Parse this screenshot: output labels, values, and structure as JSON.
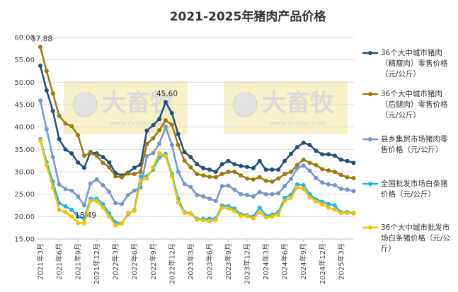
{
  "chart_data": {
    "type": "line",
    "title": "2021-2025年猪肉产品价格",
    "watermarks": [
      {
        "text": "大畜牧",
        "url": "www.dxumu.com"
      },
      {
        "text": "大畜牧",
        "url": "www.dxumu.com"
      }
    ],
    "categories": [
      "2021年3月",
      null,
      null,
      "2021年6月",
      null,
      null,
      "2021年9月",
      null,
      null,
      "2021年12月",
      null,
      null,
      "2022年3月",
      null,
      null,
      "2022年6月",
      null,
      null,
      "2022年9月",
      null,
      null,
      "2022年12月",
      null,
      null,
      "2023年3月",
      null,
      null,
      "2023年6月",
      null,
      null,
      "2023年9月",
      null,
      null,
      "2023年12月",
      null,
      null,
      "2024年3月",
      null,
      null,
      "2024年6月",
      null,
      null,
      "2024年9月",
      null,
      null,
      "2024年12月",
      null,
      null,
      "2025年3月",
      null,
      null
    ],
    "ylim": [
      15,
      60
    ],
    "yticks": [
      {
        "value": 15,
        "label": "15.00"
      },
      {
        "value": 20,
        "label": "20.00"
      },
      {
        "value": 25,
        "label": "25.00"
      },
      {
        "value": 30,
        "label": "30.00"
      },
      {
        "value": 35,
        "label": "35.00"
      },
      {
        "value": 40,
        "label": "40.00"
      },
      {
        "value": 45,
        "label": "45.00"
      },
      {
        "value": 50,
        "label": "50.00"
      },
      {
        "value": 55,
        "label": "55.00"
      },
      {
        "value": 60,
        "label": "60.00"
      }
    ],
    "grid": true,
    "legend": "right",
    "series": [
      {
        "name": "36个大中城市猪肉（精瘦肉）零售价格（元/公斤）",
        "color": "#1f4e79",
        "values": [
          53.7,
          48.2,
          43.6,
          37.3,
          35.0,
          34.1,
          32.1,
          30.9,
          34.4,
          34.1,
          33.3,
          32.1,
          29.7,
          29.2,
          29.8,
          30.9,
          31.6,
          39.2,
          40.4,
          41.8,
          45.6,
          43.1,
          38.4,
          34.4,
          33.3,
          31.7,
          30.8,
          30.5,
          30.0,
          31.7,
          32.4,
          31.7,
          31.3,
          31.1,
          30.8,
          32.4,
          30.5,
          30.5,
          30.5,
          32.4,
          34.0,
          35.5,
          36.5,
          36.0,
          34.7,
          33.9,
          33.9,
          33.6,
          32.7,
          32.4,
          32.0
        ],
        "value_labels": [
          null,
          null,
          null,
          null,
          null,
          null,
          null,
          null,
          null,
          null,
          null,
          null,
          null,
          null,
          null,
          null,
          null,
          null,
          null,
          null,
          "45.60",
          null,
          null,
          null,
          null,
          null,
          null,
          null,
          null,
          null,
          null,
          null,
          null,
          null,
          null,
          null,
          null,
          null,
          null,
          null,
          null,
          null,
          null,
          null,
          null,
          null,
          null,
          null,
          null,
          null,
          null
        ]
      },
      {
        "name": "36个大中城市猪肉（后腿肉）零售价格（元/公斤）",
        "color": "#9c7a0a",
        "values": [
          57.88,
          52.5,
          47.5,
          42.5,
          40.8,
          40.2,
          38.2,
          33.6,
          34.2,
          33.6,
          32.0,
          31.0,
          29.0,
          28.8,
          29.6,
          29.5,
          30.0,
          36.2,
          37.5,
          39.3,
          41.5,
          40.5,
          36.0,
          32.5,
          31.0,
          29.5,
          29.2,
          28.9,
          28.8,
          29.5,
          30.0,
          30.0,
          29.2,
          28.5,
          28.3,
          28.8,
          28.0,
          27.8,
          28.5,
          29.5,
          30.0,
          31.5,
          32.7,
          32.0,
          31.5,
          30.6,
          30.3,
          30.0,
          29.3,
          28.8,
          28.6
        ],
        "value_labels": [
          "57.88",
          null,
          null,
          null,
          null,
          null,
          null,
          null,
          null,
          null,
          null,
          null,
          null,
          null,
          null,
          null,
          null,
          null,
          null,
          null,
          null,
          null,
          null,
          null,
          null,
          null,
          null,
          null,
          null,
          null,
          null,
          null,
          null,
          null,
          null,
          null,
          null,
          null,
          null,
          null,
          null,
          null,
          null,
          null,
          null,
          null,
          null,
          null,
          null,
          null,
          null
        ]
      },
      {
        "name": "县乡集贸市场猪肉零售价格（元/公斤）",
        "color": "#7595cf",
        "values": [
          45.9,
          39.5,
          33.3,
          27.2,
          26.2,
          25.8,
          24.5,
          22.5,
          27.4,
          28.3,
          27.0,
          25.5,
          23.0,
          22.8,
          24.8,
          25.8,
          26.5,
          33.5,
          34.2,
          36.3,
          40.0,
          36.0,
          30.0,
          27.3,
          26.6,
          24.8,
          24.5,
          24.0,
          23.5,
          26.8,
          26.9,
          26.0,
          25.0,
          24.8,
          24.5,
          25.5,
          25.0,
          25.0,
          25.2,
          26.8,
          28.4,
          30.8,
          31.4,
          30.2,
          28.6,
          27.6,
          27.2,
          27.0,
          26.2,
          26.0,
          25.7
        ]
      },
      {
        "name": "全国批发市场白条猪价格（元/公斤）",
        "color": "#27b3e6",
        "values": [
          37.3,
          32.2,
          27.8,
          23.0,
          22.3,
          21.5,
          20.0,
          19.5,
          24.0,
          24.0,
          22.8,
          20.7,
          18.7,
          18.5,
          20.5,
          21.5,
          29.0,
          29.0,
          30.5,
          33.2,
          34.0,
          29.5,
          24.0,
          21.0,
          20.7,
          19.5,
          19.5,
          19.5,
          19.6,
          22.5,
          22.3,
          21.8,
          20.5,
          20.3,
          20.0,
          22.0,
          20.2,
          20.4,
          21.0,
          24.2,
          24.8,
          27.2,
          27.0,
          25.0,
          23.8,
          23.3,
          22.8,
          22.5,
          21.0,
          21.0,
          20.8
        ]
      },
      {
        "name": "36个大中城市批发市场白条猪价格（元/公斤）",
        "color": "#f5c200",
        "values": [
          37.0,
          31.5,
          26.5,
          21.5,
          21.0,
          20.0,
          18.6,
          18.49,
          23.5,
          23.5,
          22.0,
          20.0,
          18.0,
          18.5,
          20.8,
          21.3,
          28.0,
          28.5,
          31.0,
          34.2,
          33.5,
          29.0,
          23.2,
          20.8,
          20.6,
          19.3,
          19.2,
          19.0,
          19.2,
          22.0,
          21.8,
          21.2,
          20.2,
          20.1,
          19.6,
          21.0,
          19.8,
          20.0,
          20.4,
          23.5,
          24.2,
          26.5,
          26.2,
          24.3,
          23.4,
          22.7,
          22.0,
          21.6,
          20.8,
          20.8,
          20.7
        ],
        "value_labels": [
          null,
          null,
          null,
          null,
          null,
          null,
          null,
          "18.49",
          null,
          null,
          null,
          null,
          null,
          null,
          null,
          null,
          null,
          null,
          null,
          null,
          null,
          null,
          null,
          null,
          null,
          null,
          null,
          null,
          null,
          null,
          null,
          null,
          null,
          null,
          null,
          null,
          null,
          null,
          null,
          null,
          null,
          null,
          null,
          null,
          null,
          null,
          null,
          null,
          null,
          null,
          null
        ]
      }
    ]
  }
}
